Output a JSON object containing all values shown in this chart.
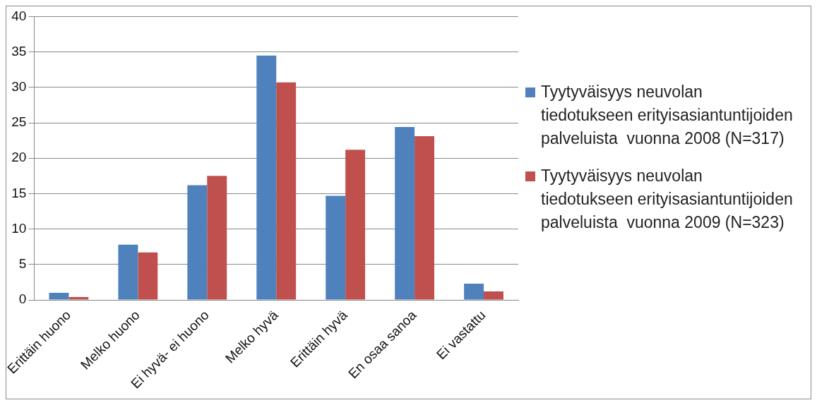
{
  "chart_data": {
    "type": "bar",
    "categories": [
      "Erittäin huono",
      "Melko huono",
      "Ei hyvä- ei huono",
      "Melko hyvä",
      "Erittäin hyvä",
      "En osaa sanoa",
      "Ei vastattu"
    ],
    "series": [
      {
        "name": "Tyytyväisyys neuvolan tiedotukseen erityisasiantuntijoiden palveluista  vuonna 2008 (N=317)",
        "color": "#4f81bd",
        "values": [
          1.0,
          7.8,
          16.2,
          34.5,
          14.7,
          24.4,
          2.3
        ]
      },
      {
        "name": "Tyytyväisyys neuvolan tiedotukseen erityisasiantuntijoiden palveluista  vuonna 2009 (N=323)",
        "color": "#c0504d",
        "values": [
          0.4,
          6.7,
          17.5,
          30.7,
          21.2,
          23.1,
          1.2
        ]
      }
    ],
    "ylim": [
      0,
      40
    ],
    "yticks": [
      0,
      5,
      10,
      15,
      20,
      25,
      30,
      35,
      40
    ],
    "grid": "y",
    "legend": "right"
  }
}
